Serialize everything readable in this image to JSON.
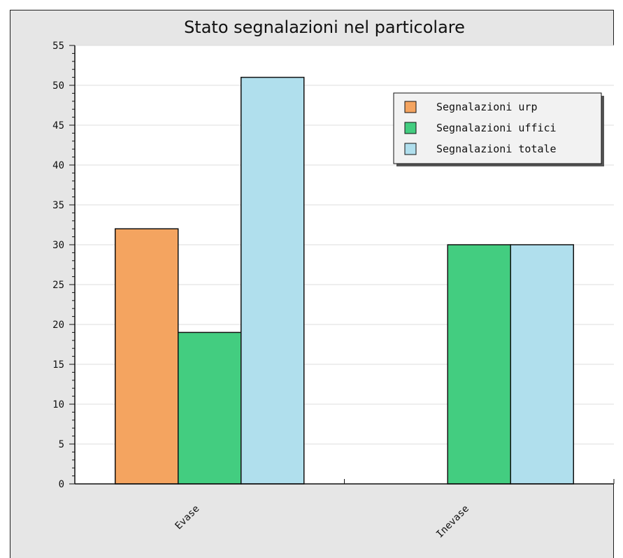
{
  "chart_data": {
    "type": "bar",
    "title": "Stato segnalazioni nel particolare",
    "xlabel": "",
    "ylabel": "",
    "categories": [
      "Evase",
      "Inevase"
    ],
    "series": [
      {
        "name": "Segnalazioni urp",
        "color": "#f4a460",
        "values": [
          32,
          0
        ]
      },
      {
        "name": "Segnalazioni uffici",
        "color": "#43cd80",
        "values": [
          19,
          30
        ]
      },
      {
        "name": "Segnalazioni totale",
        "color": "#b0dfed",
        "values": [
          51,
          30
        ]
      }
    ],
    "ylim": [
      0,
      55
    ],
    "yticks": [
      0,
      5,
      10,
      15,
      20,
      25,
      30,
      35,
      40,
      45,
      50,
      55
    ],
    "grid": true,
    "legend_position": "top-right"
  }
}
